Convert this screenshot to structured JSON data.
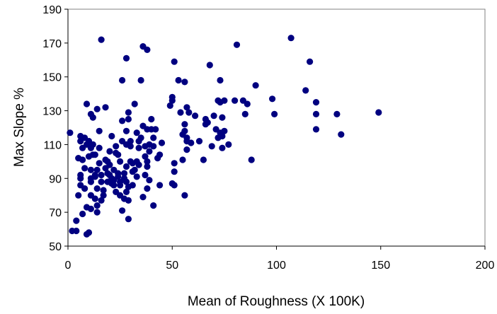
{
  "chart_data": {
    "type": "scatter",
    "title": "",
    "xlabel": "Mean of Roughness (X 100K)",
    "ylabel": "Max Slope  %",
    "xlim": [
      0,
      200
    ],
    "ylim": [
      50,
      190
    ],
    "x_ticks": [
      "0",
      "50",
      "100",
      "150",
      "200"
    ],
    "y_ticks": [
      "50",
      "70",
      "90",
      "110",
      "130",
      "150",
      "170",
      "190"
    ],
    "grid": false,
    "legend": "none",
    "marker_color": "#000080",
    "series": [
      {
        "points": [
          [
            1,
            117
          ],
          [
            2,
            59
          ],
          [
            4,
            59
          ],
          [
            4,
            65
          ],
          [
            5,
            80
          ],
          [
            5,
            102
          ],
          [
            6,
            90
          ],
          [
            6,
            92
          ],
          [
            6,
            86
          ],
          [
            6,
            112
          ],
          [
            6,
            115
          ],
          [
            7,
            69
          ],
          [
            7,
            108
          ],
          [
            7,
            101
          ],
          [
            8,
            84
          ],
          [
            8,
            114
          ],
          [
            8,
            96
          ],
          [
            9,
            57
          ],
          [
            9,
            73
          ],
          [
            9,
            110
          ],
          [
            9,
            134
          ],
          [
            10,
            58
          ],
          [
            10,
            103
          ],
          [
            10,
            112
          ],
          [
            11,
            72
          ],
          [
            11,
            90
          ],
          [
            11,
            80
          ],
          [
            11,
            88
          ],
          [
            11,
            108
          ],
          [
            11,
            95
          ],
          [
            11,
            128
          ],
          [
            12,
            126
          ],
          [
            12,
            104
          ],
          [
            12,
            110
          ],
          [
            13,
            78
          ],
          [
            13,
            104
          ],
          [
            13,
            92
          ],
          [
            13,
            91
          ],
          [
            14,
            84
          ],
          [
            14,
            74
          ],
          [
            14,
            70
          ],
          [
            14,
            95
          ],
          [
            14,
            131
          ],
          [
            15,
            99
          ],
          [
            15,
            108
          ],
          [
            15,
            118
          ],
          [
            16,
            77
          ],
          [
            16,
            92
          ],
          [
            16,
            88
          ],
          [
            16,
            172
          ],
          [
            17,
            80
          ],
          [
            17,
            83
          ],
          [
            18,
            96
          ],
          [
            18,
            132
          ],
          [
            18,
            101
          ],
          [
            19,
            88
          ],
          [
            19,
            93
          ],
          [
            19,
            100
          ],
          [
            20,
            98
          ],
          [
            20,
            92
          ],
          [
            20,
            106
          ],
          [
            21,
            115
          ],
          [
            21,
            87
          ],
          [
            21,
            90
          ],
          [
            22,
            89
          ],
          [
            22,
            86
          ],
          [
            22,
            95
          ],
          [
            23,
            109
          ],
          [
            23,
            105
          ],
          [
            23,
            82
          ],
          [
            24,
            91
          ],
          [
            24,
            104
          ],
          [
            24,
            93
          ],
          [
            25,
            80
          ],
          [
            25,
            100
          ],
          [
            25,
            86
          ],
          [
            25,
            88
          ],
          [
            26,
            71
          ],
          [
            26,
            148
          ],
          [
            26,
            124
          ],
          [
            26,
            112
          ],
          [
            27,
            78
          ],
          [
            27,
            90
          ],
          [
            27,
            93
          ],
          [
            28,
            88
          ],
          [
            28,
            82
          ],
          [
            28,
            97
          ],
          [
            28,
            110
          ],
          [
            28,
            118
          ],
          [
            28,
            161
          ],
          [
            29,
            66
          ],
          [
            29,
            77
          ],
          [
            29,
            85
          ],
          [
            29,
            125
          ],
          [
            29,
            129
          ],
          [
            30,
            100
          ],
          [
            30,
            112
          ],
          [
            30,
            109
          ],
          [
            31,
            99
          ],
          [
            31,
            86
          ],
          [
            31,
            94
          ],
          [
            32,
            134
          ],
          [
            32,
            95
          ],
          [
            33,
            91
          ],
          [
            33,
            100
          ],
          [
            33,
            117
          ],
          [
            34,
            108
          ],
          [
            34,
            98
          ],
          [
            34,
            112
          ],
          [
            35,
            148
          ],
          [
            35,
            114
          ],
          [
            36,
            168
          ],
          [
            36,
            79
          ],
          [
            36,
            121
          ],
          [
            37,
            103
          ],
          [
            37,
            92
          ],
          [
            37,
            109
          ],
          [
            38,
            166
          ],
          [
            38,
            100
          ],
          [
            38,
            84
          ],
          [
            38,
            97
          ],
          [
            38,
            119
          ],
          [
            39,
            89
          ],
          [
            39,
            106
          ],
          [
            39,
            110
          ],
          [
            40,
            125
          ],
          [
            40,
            119
          ],
          [
            41,
            74
          ],
          [
            41,
            109
          ],
          [
            41,
            114
          ],
          [
            42,
            119
          ],
          [
            43,
            102
          ],
          [
            44,
            86
          ],
          [
            44,
            104
          ],
          [
            45,
            111
          ],
          [
            49,
            133
          ],
          [
            50,
            138
          ],
          [
            50,
            136
          ],
          [
            50,
            87
          ],
          [
            51,
            159
          ],
          [
            51,
            86
          ],
          [
            51,
            99
          ],
          [
            51,
            94
          ],
          [
            53,
            148
          ],
          [
            54,
            129
          ],
          [
            55,
            116
          ],
          [
            55,
            101
          ],
          [
            56,
            147
          ],
          [
            56,
            80
          ],
          [
            56,
            118
          ],
          [
            56,
            122
          ],
          [
            57,
            132
          ],
          [
            57,
            114
          ],
          [
            57,
            112
          ],
          [
            57,
            107
          ],
          [
            58,
            129
          ],
          [
            59,
            111
          ],
          [
            61,
            127
          ],
          [
            63,
            112
          ],
          [
            65,
            101
          ],
          [
            66,
            122
          ],
          [
            66,
            125
          ],
          [
            67,
            123
          ],
          [
            68,
            157
          ],
          [
            69,
            109
          ],
          [
            70,
            127
          ],
          [
            71,
            119
          ],
          [
            72,
            114
          ],
          [
            72,
            136
          ],
          [
            73,
            135
          ],
          [
            73,
            148
          ],
          [
            73,
            117
          ],
          [
            74,
            126
          ],
          [
            74,
            115
          ],
          [
            74,
            108
          ],
          [
            75,
            136
          ],
          [
            75,
            118
          ],
          [
            77,
            110
          ],
          [
            80,
            136
          ],
          [
            81,
            169
          ],
          [
            84,
            136
          ],
          [
            85,
            128
          ],
          [
            86,
            134
          ],
          [
            88,
            101
          ],
          [
            90,
            145
          ],
          [
            98,
            137
          ],
          [
            99,
            128
          ],
          [
            107,
            173
          ],
          [
            114,
            142
          ],
          [
            116,
            159
          ],
          [
            119,
            119
          ],
          [
            119,
            128
          ],
          [
            119,
            135
          ],
          [
            129,
            128
          ],
          [
            131,
            116
          ],
          [
            149,
            129
          ]
        ]
      }
    ]
  }
}
